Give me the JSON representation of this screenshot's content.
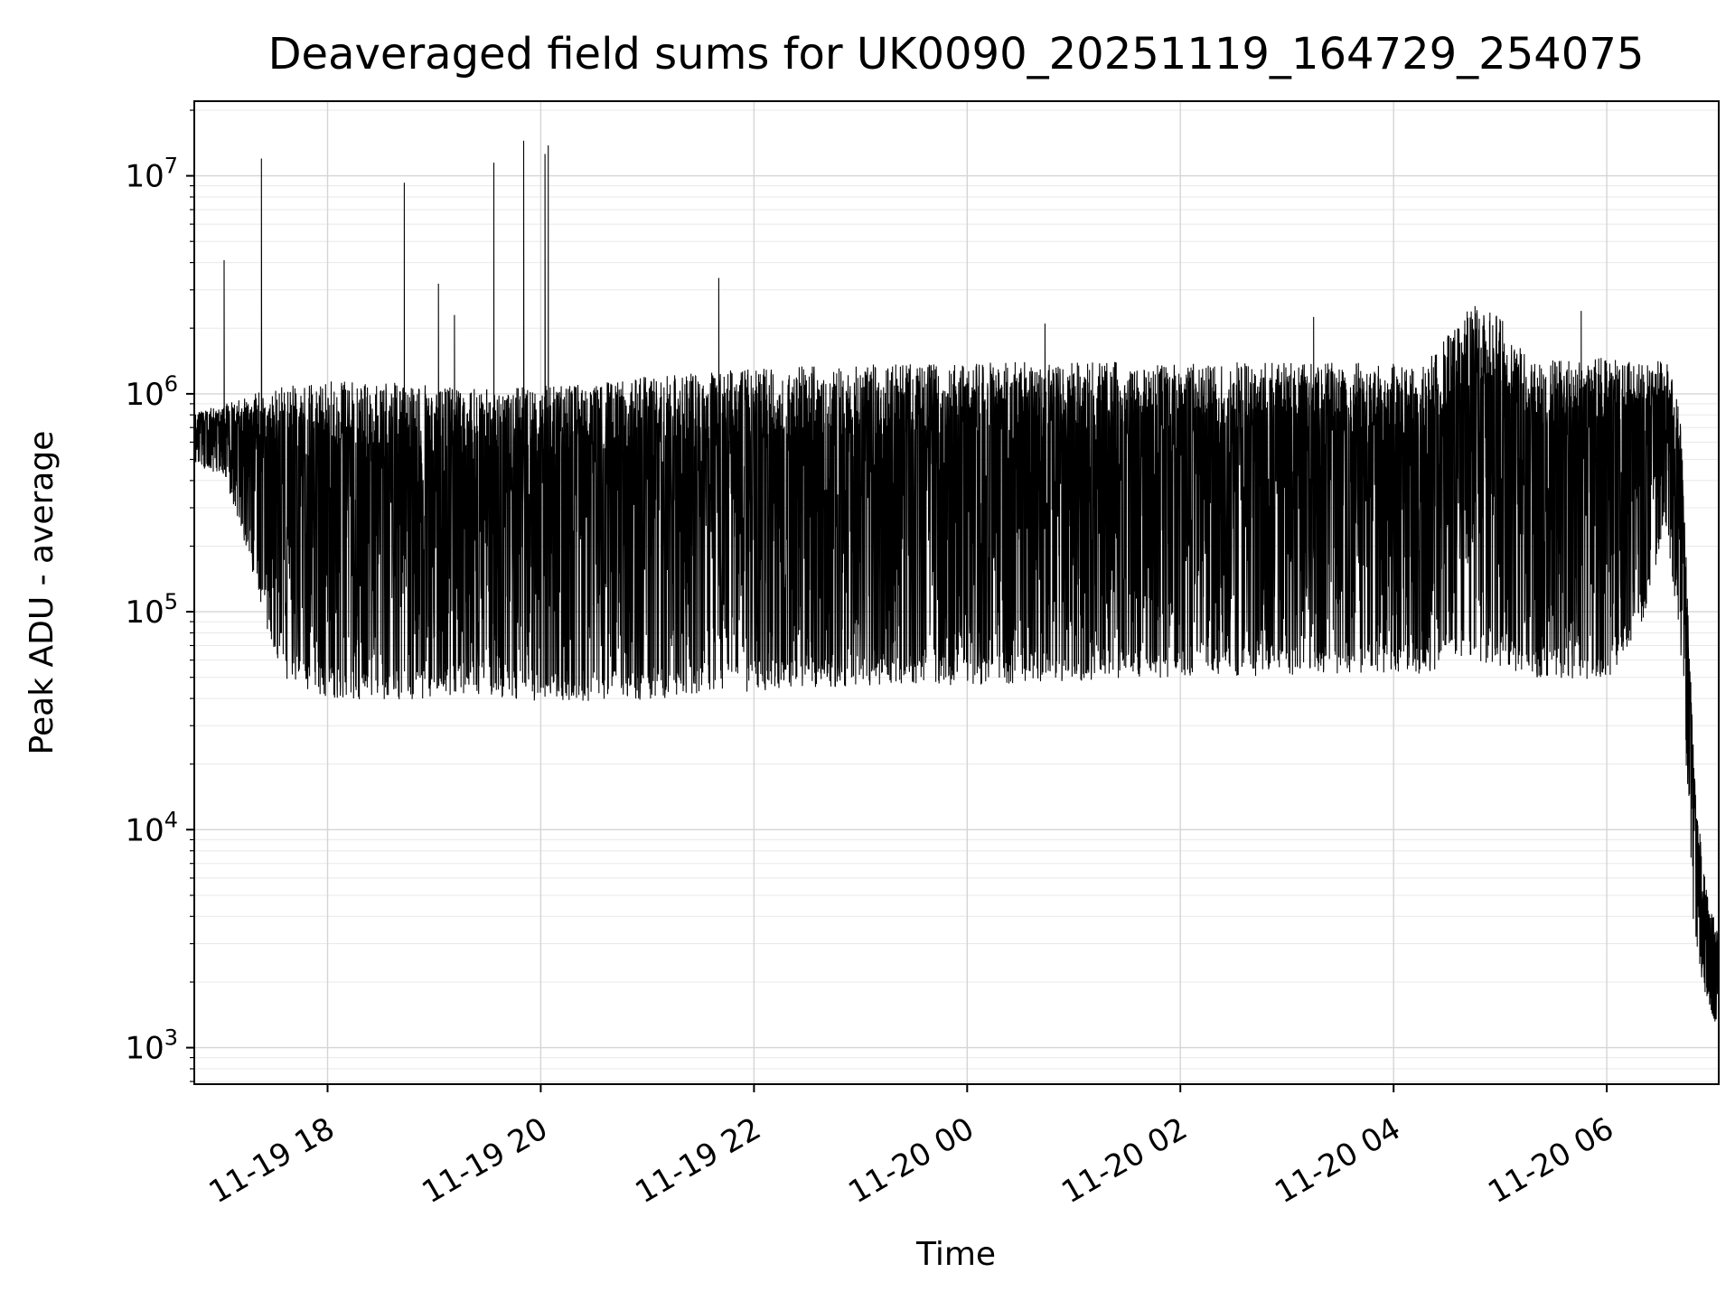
{
  "figure": {
    "background": "#ffffff"
  },
  "chart_data": {
    "type": "line",
    "title": "Deaveraged field sums for UK0090_20251119_164729_254075",
    "xlabel": "Time",
    "ylabel": "Peak ADU - average",
    "y_scale": "log",
    "grid": true,
    "legend": false,
    "line_color": "#000000",
    "grid_major_color": "#d5d5d5",
    "grid_minor_color": "#e8e8e8",
    "ylim": [
      680,
      22000000
    ],
    "x_hours_range": [
      16.75,
      31.05
    ],
    "x_ticks": [
      {
        "hour": 18,
        "label": "11-19 18"
      },
      {
        "hour": 20,
        "label": "11-19 20"
      },
      {
        "hour": 22,
        "label": "11-19 22"
      },
      {
        "hour": 24,
        "label": "11-20 00"
      },
      {
        "hour": 26,
        "label": "11-20 02"
      },
      {
        "hour": 28,
        "label": "11-20 04"
      },
      {
        "hour": 30,
        "label": "11-20 06"
      }
    ],
    "y_major_tick_exponents": [
      3,
      4,
      5,
      6,
      7
    ],
    "y_tick_labels": [
      "10³",
      "10⁴",
      "10⁵",
      "10⁶",
      "10⁷"
    ],
    "envelope": [
      {
        "t": 16.75,
        "lo": 480000,
        "hi": 820000
      },
      {
        "t": 17.05,
        "lo": 400000,
        "hi": 900000
      },
      {
        "t": 17.3,
        "lo": 150000,
        "hi": 1000000
      },
      {
        "t": 17.55,
        "lo": 50000,
        "hi": 1100000
      },
      {
        "t": 18.0,
        "lo": 40000,
        "hi": 1150000
      },
      {
        "t": 18.6,
        "lo": 38000,
        "hi": 1150000
      },
      {
        "t": 19.3,
        "lo": 42000,
        "hi": 1050000
      },
      {
        "t": 20.2,
        "lo": 38000,
        "hi": 1100000
      },
      {
        "t": 21.3,
        "lo": 40000,
        "hi": 1250000
      },
      {
        "t": 22.5,
        "lo": 45000,
        "hi": 1350000
      },
      {
        "t": 24.0,
        "lo": 46000,
        "hi": 1400000
      },
      {
        "t": 26.0,
        "lo": 50000,
        "hi": 1400000
      },
      {
        "t": 28.3,
        "lo": 52000,
        "hi": 1380000
      },
      {
        "t": 28.75,
        "lo": 60000,
        "hi": 2600000
      },
      {
        "t": 29.05,
        "lo": 55000,
        "hi": 2200000
      },
      {
        "t": 29.3,
        "lo": 50000,
        "hi": 1400000
      },
      {
        "t": 30.0,
        "lo": 48000,
        "hi": 1500000
      },
      {
        "t": 30.35,
        "lo": 90000,
        "hi": 1350000
      },
      {
        "t": 30.55,
        "lo": 260000,
        "hi": 1500000
      },
      {
        "t": 30.7,
        "lo": 60000,
        "hi": 800000
      },
      {
        "t": 30.82,
        "lo": 3000,
        "hi": 18000
      },
      {
        "t": 30.92,
        "lo": 1800,
        "hi": 6000
      },
      {
        "t": 31.05,
        "lo": 1150,
        "hi": 3200
      }
    ],
    "spikes": [
      {
        "t": 17.03,
        "value": 4100000
      },
      {
        "t": 17.38,
        "value": 12000000
      },
      {
        "t": 18.72,
        "value": 9300000
      },
      {
        "t": 19.04,
        "value": 3200000
      },
      {
        "t": 19.19,
        "value": 2300000
      },
      {
        "t": 19.56,
        "value": 11500000
      },
      {
        "t": 19.84,
        "value": 14500000
      },
      {
        "t": 20.04,
        "value": 12600000
      },
      {
        "t": 20.07,
        "value": 13800000
      },
      {
        "t": 21.67,
        "value": 3400000
      },
      {
        "t": 24.73,
        "value": 2100000
      },
      {
        "t": 27.25,
        "value": 2250000
      },
      {
        "t": 29.76,
        "value": 2400000
      }
    ],
    "points_per_hour": 500,
    "seed": 20251119
  }
}
